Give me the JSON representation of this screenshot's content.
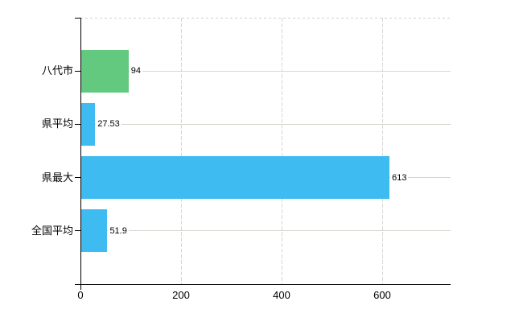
{
  "chart_data": {
    "type": "bar",
    "orientation": "horizontal",
    "title": "",
    "xlabel": "",
    "ylabel": "",
    "categories": [
      "八代市",
      "県平均",
      "県最大",
      "全国平均"
    ],
    "values": [
      94,
      27.53,
      613,
      51.9
    ],
    "value_labels": [
      "94",
      "27.53",
      "613",
      "51.9"
    ],
    "bar_colors": [
      "#63c97e",
      "#3ebbf0",
      "#3ebbf0",
      "#3ebbf0"
    ],
    "x_tick_labels": [
      "0",
      "200",
      "400",
      "600"
    ],
    "x_tick_values": [
      0,
      200,
      400,
      600
    ],
    "xlim": [
      0,
      736
    ],
    "grid": true,
    "legend": false,
    "colors": {
      "axis": "#000000",
      "gridline_h": "#d6d6d0",
      "gridline_v": "#d8d8d3",
      "plot_top_border": "#cfcfcf",
      "background": "#ffffff",
      "text": "#000000"
    }
  }
}
